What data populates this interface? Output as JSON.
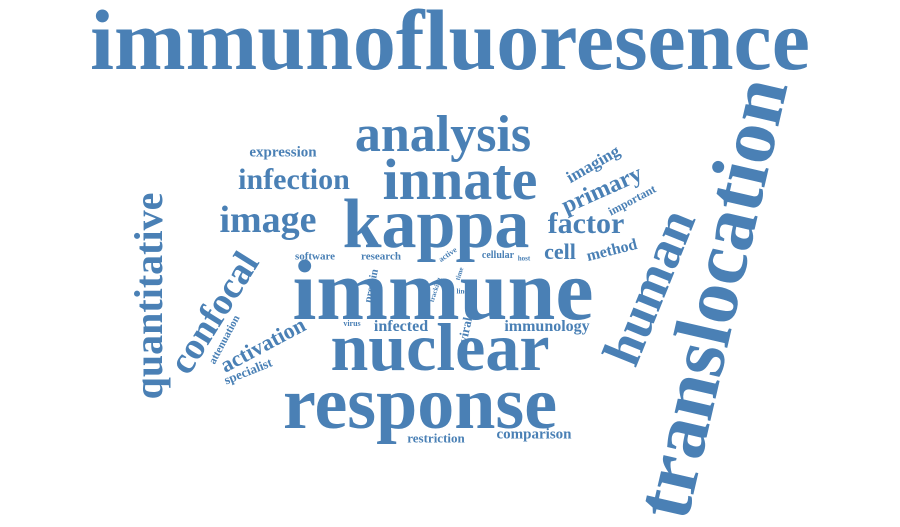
{
  "color": "#4a80b5",
  "words": [
    {
      "key": "immunofluoresence",
      "text": "immunofluoresence"
    },
    {
      "key": "translocation",
      "text": "translocation"
    },
    {
      "key": "immune",
      "text": "immune"
    },
    {
      "key": "response",
      "text": "response"
    },
    {
      "key": "nuclear",
      "text": "nuclear"
    },
    {
      "key": "kappa",
      "text": "kappa"
    },
    {
      "key": "innate",
      "text": "innate"
    },
    {
      "key": "analysis",
      "text": "analysis"
    },
    {
      "key": "human",
      "text": "human"
    },
    {
      "key": "quantitative",
      "text": "quantitative"
    },
    {
      "key": "confocal",
      "text": "confocal"
    },
    {
      "key": "image",
      "text": "image"
    },
    {
      "key": "infection",
      "text": "infection"
    },
    {
      "key": "factor",
      "text": "factor"
    },
    {
      "key": "primary",
      "text": "primary"
    },
    {
      "key": "cell",
      "text": "cell"
    },
    {
      "key": "activation",
      "text": "activation"
    },
    {
      "key": "expression",
      "text": "expression"
    },
    {
      "key": "imaging",
      "text": "imaging"
    },
    {
      "key": "method",
      "text": "method"
    },
    {
      "key": "important",
      "text": "important"
    },
    {
      "key": "infected",
      "text": "infected"
    },
    {
      "key": "immunology",
      "text": "immunology"
    },
    {
      "key": "comparison",
      "text": "comparison"
    },
    {
      "key": "restriction",
      "text": "restriction"
    },
    {
      "key": "software",
      "text": "software"
    },
    {
      "key": "research",
      "text": "research"
    },
    {
      "key": "cellular",
      "text": "cellular"
    },
    {
      "key": "specialist",
      "text": "specialist"
    },
    {
      "key": "attenuation",
      "text": "attenuation"
    },
    {
      "key": "protein",
      "text": "protein"
    },
    {
      "key": "viral",
      "text": "viral"
    },
    {
      "key": "virus",
      "text": "virus"
    },
    {
      "key": "active",
      "text": "active"
    },
    {
      "key": "host",
      "text": "host"
    },
    {
      "key": "time",
      "text": "time"
    },
    {
      "key": "line",
      "text": "line"
    },
    {
      "key": "tracking",
      "text": "tracking"
    }
  ]
}
